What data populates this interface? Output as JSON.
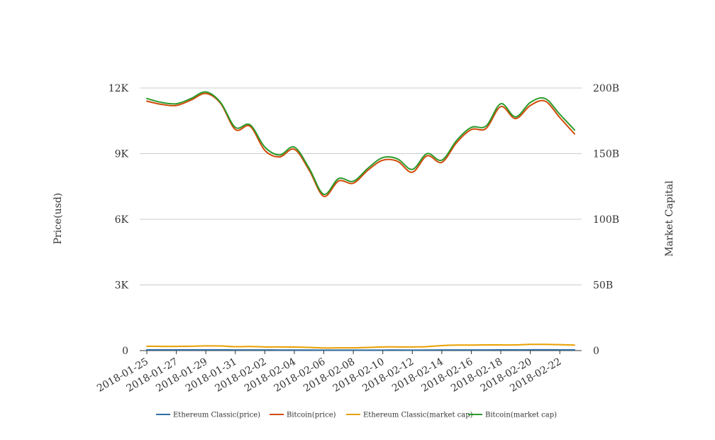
{
  "chart_data": {
    "type": "line",
    "x": [
      "2018-01-25",
      "2018-01-26",
      "2018-01-27",
      "2018-01-28",
      "2018-01-29",
      "2018-01-30",
      "2018-01-31",
      "2018-02-01",
      "2018-02-02",
      "2018-02-03",
      "2018-02-04",
      "2018-02-05",
      "2018-02-06",
      "2018-02-07",
      "2018-02-08",
      "2018-02-09",
      "2018-02-10",
      "2018-02-11",
      "2018-02-12",
      "2018-02-13",
      "2018-02-14",
      "2018-02-15",
      "2018-02-16",
      "2018-02-17",
      "2018-02-18",
      "2018-02-19",
      "2018-02-20",
      "2018-02-21",
      "2018-02-22",
      "2018-02-23"
    ],
    "x_tick_labels": [
      "2018-01-25",
      "2018-01-27",
      "2018-01-29",
      "2018-01-31",
      "2018-02-02",
      "2018-02-04",
      "2018-02-06",
      "2018-02-08",
      "2018-02-10",
      "2018-02-12",
      "2018-02-14",
      "2018-02-16",
      "2018-02-18",
      "2018-02-20",
      "2018-02-22"
    ],
    "y_left": {
      "label": "Price(usd)",
      "range": [
        0,
        12000
      ],
      "ticks": [
        0,
        3000,
        6000,
        9000,
        12000
      ],
      "tick_labels": [
        "0",
        "3K",
        "6K",
        "9K",
        "12K"
      ]
    },
    "y_right": {
      "label": "Market Capital",
      "range": [
        0,
        200000000000
      ],
      "ticks": [
        0,
        50000000000,
        100000000000,
        150000000000,
        200000000000
      ],
      "tick_labels": [
        "0",
        "50B",
        "100B",
        "150B",
        "200B"
      ]
    },
    "grid": true,
    "legend_position": "bottom",
    "series": [
      {
        "name": "Ethereum Classic(price)",
        "axis": "left",
        "color": "#2e6da4",
        "values": [
          33,
          32,
          31,
          32,
          34,
          33,
          30,
          29,
          27,
          26,
          25,
          23,
          19,
          20,
          20,
          21,
          22,
          23,
          22,
          24,
          27,
          29,
          30,
          30,
          31,
          31,
          36,
          35,
          34,
          32
        ]
      },
      {
        "name": "Bitcoin(price)",
        "axis": "left",
        "color": "#d14b0a",
        "values": [
          11400,
          11250,
          11200,
          11450,
          11750,
          11300,
          10100,
          10250,
          9150,
          8850,
          9200,
          8250,
          7050,
          7750,
          7650,
          8250,
          8700,
          8650,
          8150,
          8900,
          8600,
          9500,
          10100,
          10150,
          11150,
          10600,
          11200,
          11400,
          10650,
          9900
        ]
      },
      {
        "name": "Ethereum Classic(market cap)",
        "axis": "right",
        "color": "#e8a000",
        "values": [
          3300000000,
          3200000000,
          3200000000,
          3300000000,
          3600000000,
          3500000000,
          3000000000,
          3100000000,
          2800000000,
          2800000000,
          2700000000,
          2400000000,
          2000000000,
          2100000000,
          2100000000,
          2400000000,
          2800000000,
          2800000000,
          2800000000,
          3000000000,
          3800000000,
          4200000000,
          4200000000,
          4300000000,
          4300000000,
          4300000000,
          4700000000,
          4700000000,
          4500000000,
          4200000000
        ]
      },
      {
        "name": "Bitcoin(market cap)",
        "axis": "right",
        "color": "#2a9a2a",
        "values": [
          192000000000,
          189000000000,
          188000000000,
          192000000000,
          197000000000,
          189000000000,
          170000000000,
          172000000000,
          155000000000,
          149000000000,
          155000000000,
          139000000000,
          119000000000,
          131000000000,
          129000000000,
          139000000000,
          147000000000,
          146000000000,
          138000000000,
          150000000000,
          145000000000,
          160000000000,
          170000000000,
          171000000000,
          188000000000,
          178000000000,
          189000000000,
          192000000000,
          180000000000,
          168000000000
        ]
      }
    ]
  }
}
